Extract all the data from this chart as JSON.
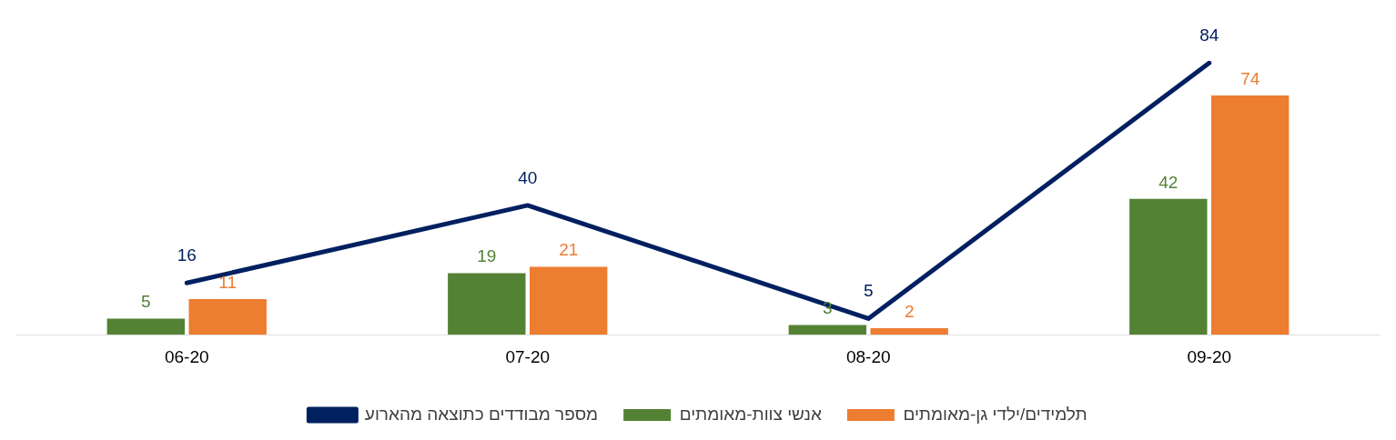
{
  "chart_data": {
    "type": "bar",
    "categories": [
      "06-20",
      "07-20",
      "08-20",
      "09-20"
    ],
    "series": [
      {
        "name": "אנשי צוות-מאומתים",
        "color": "#548235",
        "values": [
          5,
          19,
          3,
          42
        ]
      },
      {
        "name": "תלמידים/ילדי גן-מאומתים",
        "color": "#ed7d31",
        "values": [
          11,
          21,
          2,
          74
        ]
      },
      {
        "name": "מספר מבודדים כתוצאה מהארוע",
        "color": "#002060",
        "type": "line",
        "values": [
          16,
          40,
          5,
          84
        ]
      }
    ],
    "tick_labels": "x",
    "data_labels": true,
    "legend": "bottom",
    "grid": false,
    "marker": "none"
  }
}
